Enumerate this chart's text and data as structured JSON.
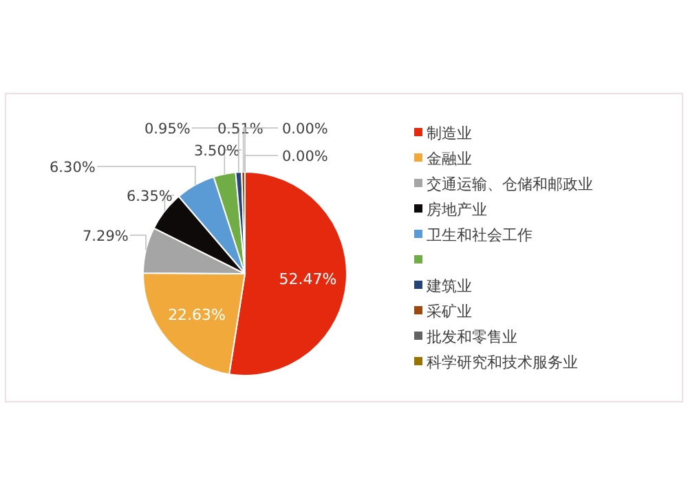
{
  "chart_data": {
    "type": "pie",
    "categories": [
      "制造业",
      "金融业",
      "交通运输、仓储和邮政业",
      "房地产业",
      "卫生和社会工作",
      null,
      "建筑业",
      "采矿业",
      "批发和零售业",
      "科学研究和技术服务业"
    ],
    "values": [
      52.47,
      22.63,
      7.29,
      6.35,
      6.3,
      3.5,
      0.95,
      0.51,
      0.0,
      0.0
    ],
    "colors": [
      "#e5290f",
      "#f2a93b",
      "#a5a5a5",
      "#0d0a09",
      "#5b9bd5",
      "#70ad47",
      "#264478",
      "#9e480e",
      "#636363",
      "#997300"
    ],
    "value_labels": [
      "52.47%",
      "22.63%",
      "7.29%",
      "6.35%",
      "6.30%",
      "3.50%",
      "0.95%",
      "0.51%",
      "0.00%",
      "0.00%"
    ],
    "legend": "right"
  }
}
